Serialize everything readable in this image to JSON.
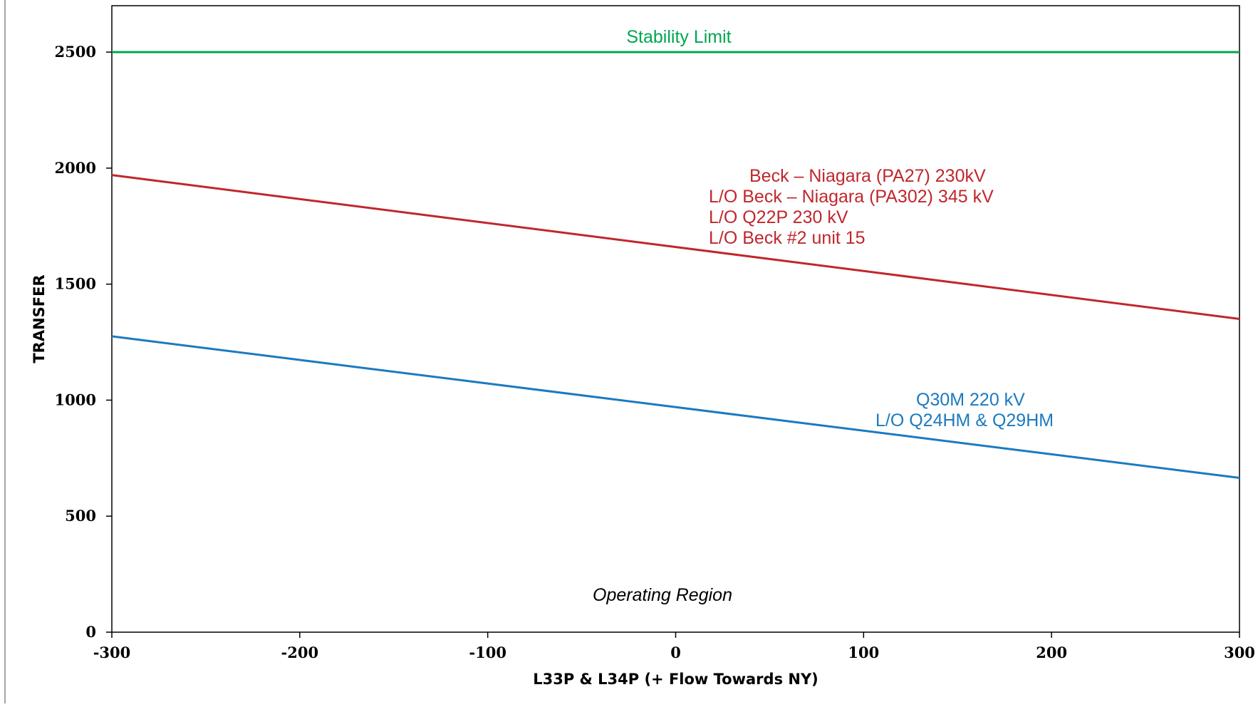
{
  "chart_data": {
    "type": "line",
    "title": "",
    "xlabel": "L33P & L34P (+ Flow Towards NY)",
    "ylabel": "TRANSFER",
    "xlim": [
      -300,
      300
    ],
    "ylim": [
      0,
      2700
    ],
    "x_ticks": [
      "-300",
      "-200",
      "-100",
      "0",
      "100",
      "200",
      "300"
    ],
    "y_ticks": [
      "0",
      "500",
      "1000",
      "1500",
      "2000",
      "2500"
    ],
    "x_tick_values": [
      -300,
      -200,
      -100,
      0,
      100,
      200,
      300
    ],
    "y_tick_values": [
      0,
      500,
      1000,
      1500,
      2000,
      2500
    ],
    "grid": false,
    "legend": "none",
    "series": [
      {
        "color": "#00a651",
        "x": [
          -300,
          300
        ],
        "y": [
          2500,
          2500
        ]
      },
      {
        "color": "#c0272d",
        "x": [
          -300,
          300
        ],
        "y": [
          1970,
          1350
        ]
      },
      {
        "color": "#1b7ac0",
        "x": [
          -300,
          300
        ],
        "y": [
          1275,
          665
        ]
      }
    ],
    "annotations": [
      {
        "lines": [
          "Stability Limit"
        ],
        "color": "#00a651",
        "italic": false
      },
      {
        "lines": [
          "Beck – Niagara (PA27) 230kV",
          "L/O  Beck – Niagara (PA302) 345 kV",
          "L/O  Q22P 230 kV",
          "L/O  Beck #2 unit 15"
        ],
        "color": "#c0272d",
        "italic": false
      },
      {
        "lines": [
          "Q30M 220 kV",
          "L/O  Q24HM & Q29HM"
        ],
        "color": "#1b7ac0",
        "italic": false
      },
      {
        "lines": [
          "Operating Region"
        ],
        "color": "#000000",
        "italic": true
      }
    ]
  }
}
